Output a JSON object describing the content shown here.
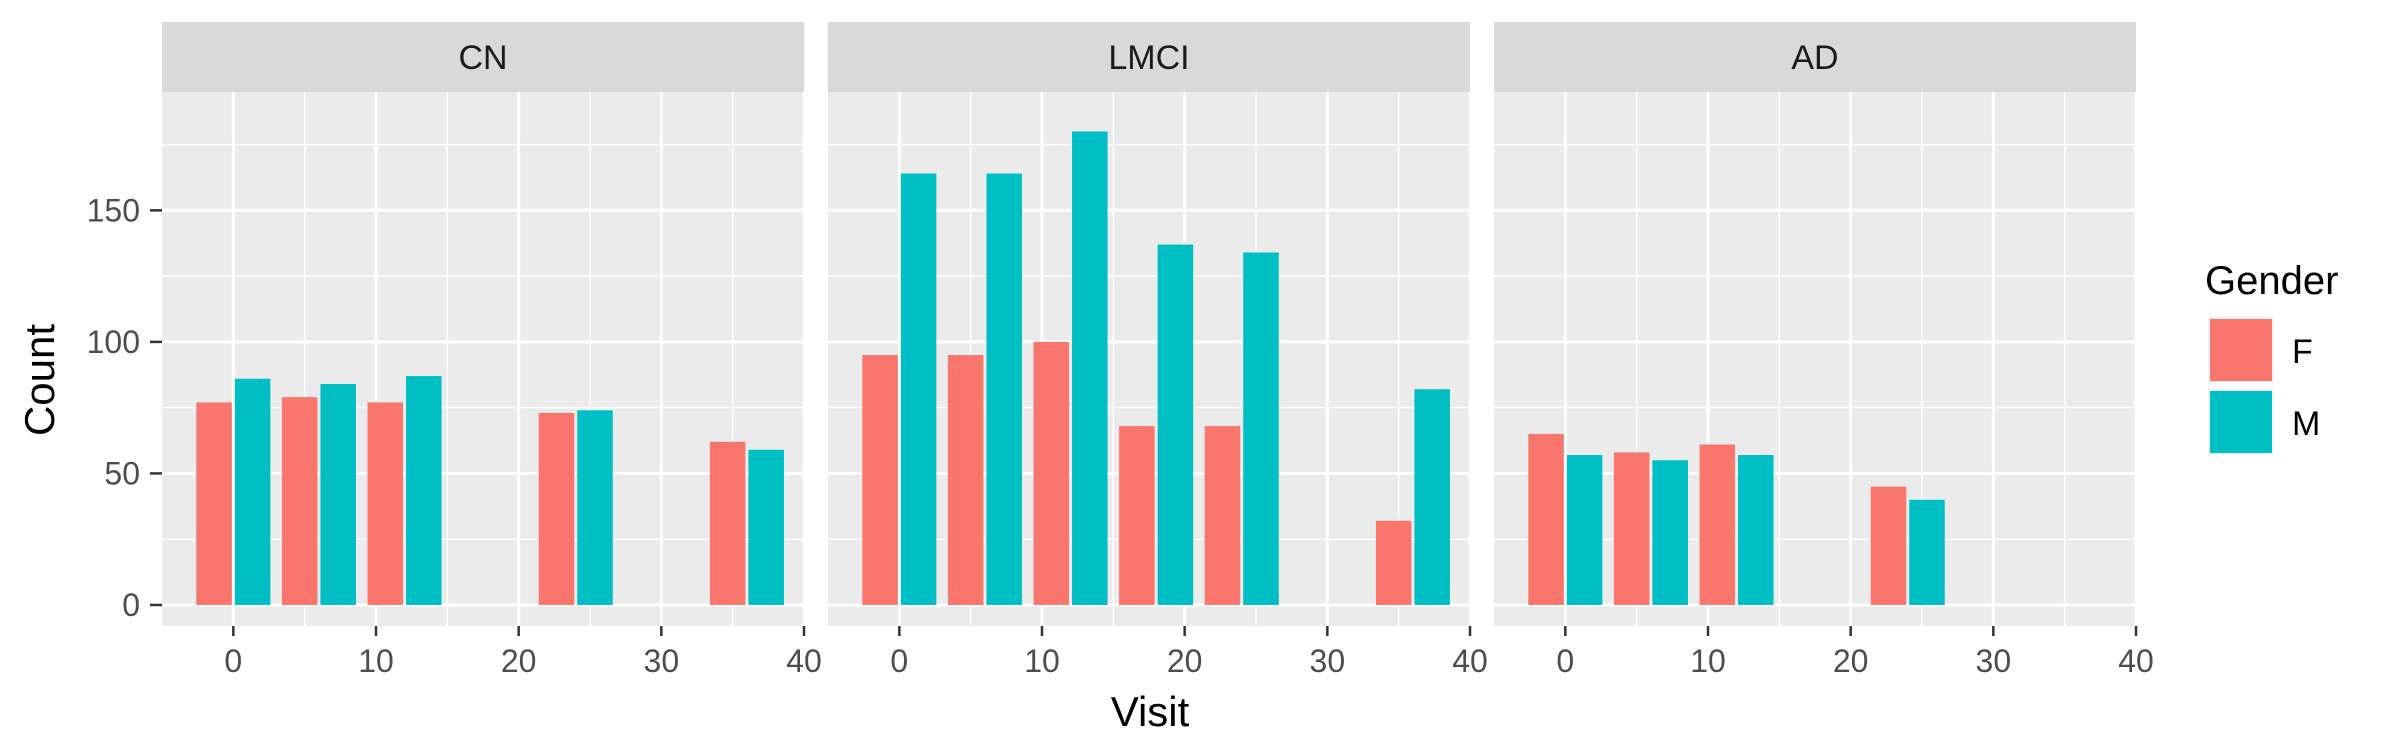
{
  "chart_data": {
    "type": "bar",
    "xlabel": "Visit",
    "ylabel": "Count",
    "xlim": [
      -5,
      40
    ],
    "ylim": [
      -8,
      195
    ],
    "x_ticks": [
      0,
      10,
      20,
      30,
      40
    ],
    "y_ticks": [
      0,
      50,
      100,
      150
    ],
    "bar_width": 5.4,
    "grid": true,
    "legend": {
      "title": "Gender",
      "position": "right",
      "entries": [
        {
          "name": "F",
          "color": "#F8766D"
        },
        {
          "name": "M",
          "color": "#00BFC4"
        }
      ]
    },
    "facets": [
      {
        "label": "CN",
        "x": [
          0,
          6,
          12,
          24,
          36
        ],
        "series": [
          {
            "name": "F",
            "values": [
              77,
              79,
              77,
              73,
              62
            ]
          },
          {
            "name": "M",
            "values": [
              86,
              84,
              87,
              74,
              59
            ]
          }
        ]
      },
      {
        "label": "LMCI",
        "x": [
          0,
          6,
          12,
          18,
          24,
          36
        ],
        "series": [
          {
            "name": "F",
            "values": [
              95,
              95,
              100,
              68,
              68,
              32
            ]
          },
          {
            "name": "M",
            "values": [
              164,
              164,
              180,
              137,
              134,
              82
            ]
          }
        ]
      },
      {
        "label": "AD",
        "x": [
          0,
          6,
          12,
          24
        ],
        "series": [
          {
            "name": "F",
            "values": [
              65,
              58,
              61,
              45
            ]
          },
          {
            "name": "M",
            "values": [
              57,
              55,
              57,
              40
            ]
          }
        ]
      }
    ]
  }
}
